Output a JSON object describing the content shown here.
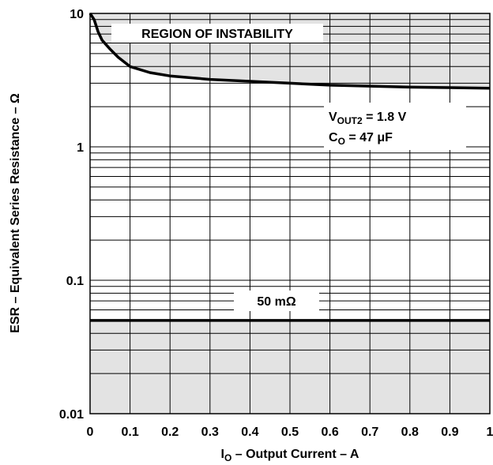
{
  "chart_data": {
    "type": "line",
    "title": "",
    "xlabel": {
      "main": "I",
      "sub": "O",
      "rest": " – Output Current – A"
    },
    "ylabel": "ESR – Equivalent Series Resistance – Ω",
    "xlim": [
      0,
      1
    ],
    "ylim": [
      0.01,
      10
    ],
    "yscale": "log",
    "grid": true,
    "x_ticks": [
      "0",
      "0.1",
      "0.2",
      "0.3",
      "0.4",
      "0.5",
      "0.6",
      "0.7",
      "0.8",
      "0.9",
      "1"
    ],
    "y_ticks": [
      "0.01",
      "0.1",
      "1",
      "10"
    ],
    "series": [
      {
        "x": [
          0.0,
          0.01,
          0.02,
          0.03,
          0.05,
          0.07,
          0.1,
          0.15,
          0.2,
          0.3,
          0.4,
          0.5,
          0.6,
          0.7,
          0.8,
          0.9,
          1.0
        ],
        "y": [
          10,
          9.0,
          7.3,
          6.3,
          5.4,
          4.7,
          4.0,
          3.6,
          3.4,
          3.2,
          3.1,
          3.0,
          2.9,
          2.85,
          2.8,
          2.78,
          2.75
        ]
      }
    ],
    "threshold_line": {
      "y": 0.05,
      "label": "50 mΩ"
    },
    "regions": [
      {
        "label": "REGION OF INSTABILITY",
        "bound": "above-curve"
      },
      {
        "label": "",
        "bound": "below-threshold"
      }
    ],
    "conditions": [
      {
        "main": "V",
        "sub": "OUT2",
        "rest": " = 1.8 V"
      },
      {
        "main": "C",
        "sub": "O",
        "rest": " = 47 μF"
      }
    ],
    "colors": {
      "shade": "#e3e3e3",
      "line": "#000000",
      "grid": "#000000"
    }
  }
}
